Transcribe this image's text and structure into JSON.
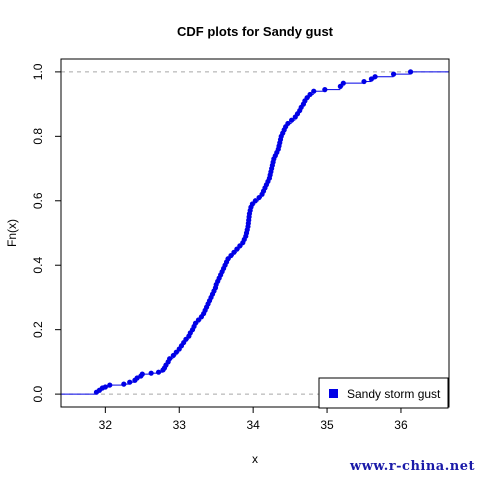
{
  "chart_data": {
    "type": "step",
    "title": "CDF plots for Sandy gust",
    "xlabel": "x",
    "ylabel": "Fn(x)",
    "xlim": [
      31.4,
      36.65
    ],
    "ylim": [
      -0.04,
      1.04
    ],
    "x_ticks": [
      "32",
      "33",
      "34",
      "35",
      "36"
    ],
    "y_ticks": [
      "0.0",
      "0.2",
      "0.4",
      "0.6",
      "0.8",
      "1.0"
    ],
    "reference_lines": [
      0,
      1
    ],
    "legend": {
      "label": "Sandy storm gust",
      "position": "bottom-right"
    },
    "series_color": "#0000e6",
    "points": [
      [
        31.88,
        0.006
      ],
      [
        31.92,
        0.012
      ],
      [
        31.96,
        0.019
      ],
      [
        32.0,
        0.022
      ],
      [
        32.06,
        0.028
      ],
      [
        32.25,
        0.031
      ],
      [
        32.33,
        0.037
      ],
      [
        32.4,
        0.043
      ],
      [
        32.43,
        0.05
      ],
      [
        32.48,
        0.056
      ],
      [
        32.5,
        0.062
      ],
      [
        32.62,
        0.065
      ],
      [
        32.72,
        0.068
      ],
      [
        32.78,
        0.075
      ],
      [
        32.8,
        0.081
      ],
      [
        32.82,
        0.09
      ],
      [
        32.85,
        0.1
      ],
      [
        32.87,
        0.11
      ],
      [
        32.92,
        0.12
      ],
      [
        32.96,
        0.13
      ],
      [
        33.0,
        0.14
      ],
      [
        33.03,
        0.15
      ],
      [
        33.06,
        0.16
      ],
      [
        33.09,
        0.17
      ],
      [
        33.13,
        0.18
      ],
      [
        33.15,
        0.19
      ],
      [
        33.18,
        0.2
      ],
      [
        33.2,
        0.21
      ],
      [
        33.22,
        0.22
      ],
      [
        33.26,
        0.23
      ],
      [
        33.3,
        0.24
      ],
      [
        33.33,
        0.25
      ],
      [
        33.35,
        0.26
      ],
      [
        33.37,
        0.27
      ],
      [
        33.39,
        0.28
      ],
      [
        33.41,
        0.29
      ],
      [
        33.43,
        0.3
      ],
      [
        33.45,
        0.31
      ],
      [
        33.47,
        0.32
      ],
      [
        33.49,
        0.33
      ],
      [
        33.5,
        0.34
      ],
      [
        33.52,
        0.35
      ],
      [
        33.54,
        0.36
      ],
      [
        33.56,
        0.37
      ],
      [
        33.58,
        0.38
      ],
      [
        33.6,
        0.39
      ],
      [
        33.62,
        0.4
      ],
      [
        33.64,
        0.41
      ],
      [
        33.66,
        0.42
      ],
      [
        33.7,
        0.43
      ],
      [
        33.74,
        0.44
      ],
      [
        33.78,
        0.45
      ],
      [
        33.82,
        0.46
      ],
      [
        33.86,
        0.47
      ],
      [
        33.88,
        0.48
      ],
      [
        33.9,
        0.49
      ],
      [
        33.91,
        0.5
      ],
      [
        33.92,
        0.51
      ],
      [
        33.93,
        0.52
      ],
      [
        33.935,
        0.53
      ],
      [
        33.94,
        0.54
      ],
      [
        33.945,
        0.55
      ],
      [
        33.95,
        0.56
      ],
      [
        33.96,
        0.57
      ],
      [
        33.97,
        0.58
      ],
      [
        33.99,
        0.59
      ],
      [
        34.03,
        0.6
      ],
      [
        34.08,
        0.61
      ],
      [
        34.12,
        0.62
      ],
      [
        34.14,
        0.63
      ],
      [
        34.16,
        0.64
      ],
      [
        34.18,
        0.65
      ],
      [
        34.2,
        0.66
      ],
      [
        34.22,
        0.67
      ],
      [
        34.23,
        0.68
      ],
      [
        34.24,
        0.69
      ],
      [
        34.25,
        0.7
      ],
      [
        34.26,
        0.71
      ],
      [
        34.27,
        0.72
      ],
      [
        34.28,
        0.73
      ],
      [
        34.3,
        0.74
      ],
      [
        34.32,
        0.75
      ],
      [
        34.34,
        0.76
      ],
      [
        34.35,
        0.77
      ],
      [
        34.36,
        0.78
      ],
      [
        34.37,
        0.79
      ],
      [
        34.38,
        0.8
      ],
      [
        34.4,
        0.81
      ],
      [
        34.42,
        0.82
      ],
      [
        34.44,
        0.83
      ],
      [
        34.47,
        0.84
      ],
      [
        34.52,
        0.85
      ],
      [
        34.57,
        0.86
      ],
      [
        34.6,
        0.87
      ],
      [
        34.63,
        0.88
      ],
      [
        34.65,
        0.89
      ],
      [
        34.68,
        0.9
      ],
      [
        34.7,
        0.91
      ],
      [
        34.73,
        0.92
      ],
      [
        34.77,
        0.93
      ],
      [
        34.82,
        0.94
      ],
      [
        34.97,
        0.945
      ],
      [
        35.18,
        0.955
      ],
      [
        35.22,
        0.965
      ],
      [
        35.5,
        0.97
      ],
      [
        35.6,
        0.978
      ],
      [
        35.65,
        0.985
      ],
      [
        35.9,
        0.993
      ],
      [
        36.13,
        1.0
      ]
    ]
  }
}
